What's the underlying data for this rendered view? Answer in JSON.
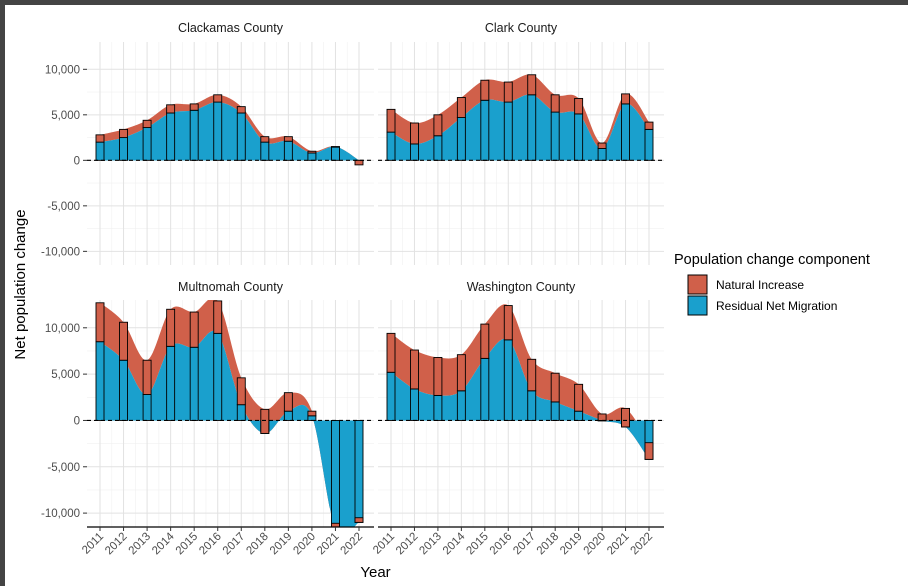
{
  "chart_data": {
    "type": "bar",
    "y_axis_label": "Net population change",
    "x_axis_label": "Year",
    "legend": {
      "title": "Population change component",
      "placement": "right",
      "items": [
        {
          "label": "Natural Increase",
          "color": "#d0604a"
        },
        {
          "label": "Residual Net Migration",
          "color": "#1aa0cd"
        }
      ]
    },
    "categories": [
      "2011",
      "2012",
      "2013",
      "2014",
      "2015",
      "2016",
      "2017",
      "2018",
      "2019",
      "2020",
      "2021",
      "2022"
    ],
    "y_ticks": [
      {
        "value": 10000,
        "label": "10,000"
      },
      {
        "value": 5000,
        "label": "5,000"
      },
      {
        "value": 0,
        "label": "0"
      },
      {
        "value": -5000,
        "label": "-5,000"
      },
      {
        "value": -10000,
        "label": "-10,000"
      }
    ],
    "ylim": [
      -11500,
      13000
    ],
    "panels": [
      {
        "title": "Clackamas County",
        "series": [
          {
            "name": "Natural Increase",
            "values": [
              800,
              900,
              800,
              900,
              700,
              800,
              700,
              600,
              500,
              200,
              0,
              -500
            ]
          },
          {
            "name": "Residual Net Migration",
            "values": [
              2000,
              2500,
              3600,
              5200,
              5500,
              6400,
              5200,
              2000,
              2100,
              800,
              1500,
              0
            ]
          }
        ]
      },
      {
        "title": "Clark County",
        "series": [
          {
            "name": "Natural Increase",
            "values": [
              2500,
              2300,
              2300,
              2200,
              2200,
              2200,
              2200,
              1900,
              1700,
              600,
              1100,
              800
            ]
          },
          {
            "name": "Residual Net Migration",
            "values": [
              3100,
              1800,
              2700,
              4700,
              6600,
              6400,
              7200,
              5300,
              5100,
              1300,
              6200,
              3400
            ]
          }
        ]
      },
      {
        "title": "Multnomah County",
        "series": [
          {
            "name": "Natural Increase",
            "values": [
              4200,
              4100,
              3700,
              4000,
              3800,
              3500,
              2900,
              2600,
              2000,
              500,
              600,
              500
            ]
          },
          {
            "name": "Residual Net Migration",
            "values": [
              8500,
              6500,
              2800,
              8000,
              7900,
              9400,
              1700,
              -1400,
              1000,
              500,
              -11700,
              -11000
            ]
          }
        ]
      },
      {
        "title": "Washington County",
        "series": [
          {
            "name": "Natural Increase",
            "values": [
              4200,
              4200,
              4100,
              3900,
              3700,
              3700,
              3400,
              3100,
              2900,
              700,
              2000,
              1800
            ]
          },
          {
            "name": "Residual Net Migration",
            "values": [
              5200,
              3400,
              2700,
              3200,
              6700,
              8700,
              3200,
              2000,
              1000,
              0,
              -700,
              -4200
            ]
          }
        ]
      }
    ]
  }
}
